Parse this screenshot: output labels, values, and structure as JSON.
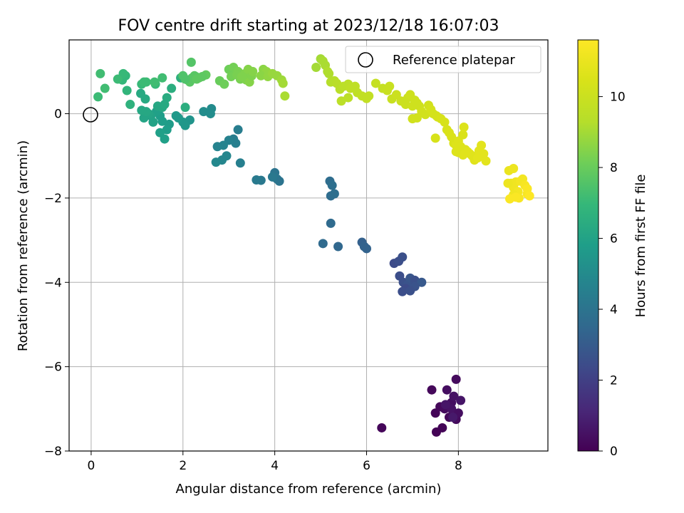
{
  "chart_data": {
    "type": "scatter",
    "title": "FOV centre drift starting at 2023/12/18 16:07:03",
    "xlabel": "Angular distance from reference (arcmin)",
    "ylabel": "Rotation from reference (arcmin)",
    "xlim": [
      -0.48,
      9.95
    ],
    "ylim": [
      -8.0,
      1.75
    ],
    "xticks": [
      0,
      2,
      4,
      6,
      8
    ],
    "xtick_labels": [
      "0",
      "2",
      "4",
      "6",
      "8"
    ],
    "yticks": [
      0,
      -2,
      -4,
      -6,
      -8
    ],
    "ytick_labels": [
      "0",
      "−2",
      "−4",
      "−6",
      "−8"
    ],
    "grid": true,
    "legend": {
      "placement": "top-right",
      "entries": [
        "Reference platepar"
      ]
    },
    "reference_point": {
      "x": 0,
      "y": 0,
      "label": "Reference platepar"
    },
    "colorbar": {
      "label": "Hours from first FF file",
      "range": [
        0,
        11.6
      ],
      "ticks": [
        0,
        2,
        4,
        6,
        8,
        10
      ],
      "tick_labels": [
        "0",
        "2",
        "4",
        "6",
        "8",
        "10"
      ],
      "colormap": "viridis"
    },
    "points": [
      [
        7.42,
        -6.55,
        0.2
      ],
      [
        7.95,
        -6.3,
        0.3
      ],
      [
        7.75,
        -6.55,
        0.4
      ],
      [
        7.5,
        -7.1,
        0.1
      ],
      [
        7.6,
        -6.95,
        0.2
      ],
      [
        7.7,
        -7.0,
        0.3
      ],
      [
        7.85,
        -6.85,
        0.4
      ],
      [
        7.9,
        -6.7,
        0.5
      ],
      [
        8.05,
        -6.8,
        0.6
      ],
      [
        7.8,
        -7.2,
        0.2
      ],
      [
        7.95,
        -7.25,
        0.3
      ],
      [
        7.85,
        -7.0,
        0.5
      ],
      [
        7.65,
        -7.45,
        0.1
      ],
      [
        7.52,
        -7.55,
        0.05
      ],
      [
        6.33,
        -7.45,
        0.15
      ],
      [
        8.0,
        -7.1,
        0.4
      ],
      [
        7.72,
        -6.9,
        0.6
      ],
      [
        7.88,
        -7.2,
        0.7
      ],
      [
        6.6,
        -3.55,
        2.4
      ],
      [
        6.7,
        -3.5,
        2.5
      ],
      [
        6.78,
        -3.4,
        2.6
      ],
      [
        6.72,
        -3.85,
        2.5
      ],
      [
        6.8,
        -4.0,
        2.6
      ],
      [
        6.9,
        -4.05,
        2.7
      ],
      [
        6.95,
        -3.9,
        2.8
      ],
      [
        7.05,
        -3.95,
        2.6
      ],
      [
        7.2,
        -4.0,
        2.9
      ],
      [
        6.85,
        -4.15,
        2.4
      ],
      [
        6.78,
        -4.22,
        2.5
      ],
      [
        7.05,
        -4.1,
        2.7
      ],
      [
        6.95,
        -4.2,
        2.6
      ],
      [
        5.9,
        -3.05,
        3.2
      ],
      [
        5.95,
        -3.15,
        3.3
      ],
      [
        6.0,
        -3.2,
        3.3
      ],
      [
        5.38,
        -3.15,
        3.5
      ],
      [
        5.05,
        -3.08,
        3.6
      ],
      [
        5.22,
        -2.6,
        3.6
      ],
      [
        5.2,
        -1.6,
        3.7
      ],
      [
        5.25,
        -1.7,
        3.8
      ],
      [
        5.22,
        -1.95,
        3.7
      ],
      [
        5.3,
        -1.9,
        3.8
      ],
      [
        4.0,
        -1.4,
        4.0
      ],
      [
        4.05,
        -1.55,
        4.1
      ],
      [
        4.1,
        -1.6,
        4.0
      ],
      [
        3.95,
        -1.5,
        4.2
      ],
      [
        3.7,
        -1.58,
        4.2
      ],
      [
        3.6,
        -1.57,
        4.3
      ],
      [
        3.1,
        -0.6,
        4.4
      ],
      [
        3.15,
        -0.7,
        4.5
      ],
      [
        3.2,
        -0.38,
        4.4
      ],
      [
        3.0,
        -0.63,
        4.6
      ],
      [
        3.25,
        -1.17,
        4.5
      ],
      [
        2.75,
        -0.78,
        4.7
      ],
      [
        2.88,
        -0.75,
        4.7
      ],
      [
        2.95,
        -1.0,
        4.8
      ],
      [
        2.85,
        -1.1,
        4.8
      ],
      [
        2.72,
        -1.15,
        4.9
      ],
      [
        2.62,
        0.12,
        5.0
      ],
      [
        2.45,
        0.05,
        5.1
      ],
      [
        2.6,
        0.0,
        5.1
      ],
      [
        2.15,
        -0.15,
        5.4
      ],
      [
        2.05,
        -0.28,
        5.5
      ],
      [
        2.0,
        -0.2,
        5.5
      ],
      [
        1.85,
        -0.05,
        5.6
      ],
      [
        1.9,
        -0.1,
        5.6
      ],
      [
        1.7,
        -0.25,
        5.7
      ],
      [
        1.65,
        -0.38,
        5.8
      ],
      [
        1.55,
        -0.18,
        5.8
      ],
      [
        1.5,
        -0.05,
        5.8
      ],
      [
        1.6,
        -0.6,
        5.9
      ],
      [
        1.5,
        -0.45,
        5.9
      ],
      [
        1.42,
        0.05,
        5.9
      ],
      [
        1.35,
        -0.2,
        6.0
      ],
      [
        1.3,
        -0.05,
        6.0
      ],
      [
        1.25,
        0.0,
        6.1
      ],
      [
        1.15,
        -0.1,
        6.1
      ],
      [
        1.2,
        0.05,
        6.2
      ],
      [
        1.1,
        0.08,
        6.2
      ],
      [
        1.08,
        0.48,
        6.3
      ],
      [
        1.18,
        0.35,
        6.3
      ],
      [
        1.55,
        0.15,
        6.2
      ],
      [
        1.45,
        0.18,
        6.2
      ],
      [
        1.65,
        0.38,
        6.4
      ],
      [
        1.75,
        0.6,
        6.5
      ],
      [
        1.95,
        0.85,
        6.6
      ],
      [
        2.05,
        0.15,
        6.5
      ],
      [
        1.6,
        0.22,
        6.3
      ],
      [
        0.85,
        0.22,
        6.7
      ],
      [
        0.78,
        0.55,
        6.8
      ],
      [
        0.75,
        0.9,
        6.9
      ],
      [
        0.68,
        0.8,
        6.9
      ],
      [
        0.7,
        0.95,
        7.0
      ],
      [
        0.58,
        0.82,
        7.1
      ],
      [
        0.2,
        0.95,
        7.2
      ],
      [
        0.3,
        0.6,
        7.2
      ],
      [
        0.15,
        0.4,
        7.1
      ],
      [
        1.1,
        0.7,
        7.0
      ],
      [
        1.2,
        0.75,
        7.1
      ],
      [
        1.4,
        0.7,
        7.0
      ],
      [
        1.55,
        0.85,
        7.2
      ],
      [
        1.15,
        0.75,
        7.1
      ],
      [
        1.38,
        0.75,
        7.2
      ],
      [
        2.0,
        0.9,
        7.5
      ],
      [
        2.1,
        0.8,
        7.6
      ],
      [
        2.2,
        0.85,
        7.6
      ],
      [
        2.25,
        0.9,
        7.7
      ],
      [
        2.35,
        0.85,
        7.8
      ],
      [
        2.18,
        1.22,
        7.6
      ],
      [
        2.28,
        0.88,
        7.7
      ],
      [
        2.5,
        0.92,
        7.9
      ],
      [
        2.15,
        0.75,
        7.7
      ],
      [
        2.3,
        0.82,
        7.8
      ],
      [
        2.05,
        0.82,
        7.5
      ],
      [
        2.42,
        0.88,
        7.8
      ],
      [
        2.8,
        0.78,
        8.0
      ],
      [
        2.9,
        0.7,
        8.1
      ],
      [
        3.0,
        1.05,
        8.1
      ],
      [
        3.1,
        1.1,
        8.2
      ],
      [
        3.15,
        0.95,
        8.2
      ],
      [
        3.2,
        1.0,
        8.3
      ],
      [
        3.25,
        0.82,
        8.3
      ],
      [
        3.3,
        0.9,
        8.2
      ],
      [
        3.35,
        0.95,
        8.4
      ],
      [
        3.38,
        0.8,
        8.4
      ],
      [
        3.42,
        1.05,
        8.5
      ],
      [
        3.45,
        0.75,
        8.5
      ],
      [
        3.5,
        0.9,
        8.4
      ],
      [
        3.52,
        1.0,
        8.5
      ],
      [
        3.05,
        0.88,
        8.2
      ],
      [
        3.18,
        0.92,
        8.3
      ],
      [
        3.28,
        0.88,
        8.4
      ],
      [
        3.75,
        1.05,
        8.6
      ],
      [
        3.82,
        1.0,
        8.7
      ],
      [
        3.7,
        0.9,
        8.6
      ],
      [
        3.85,
        0.88,
        8.7
      ],
      [
        3.95,
        0.95,
        8.8
      ],
      [
        4.05,
        0.9,
        8.8
      ],
      [
        4.15,
        0.8,
        8.9
      ],
      [
        4.18,
        0.72,
        9.0
      ],
      [
        4.22,
        0.42,
        9.1
      ],
      [
        5.0,
        1.3,
        9.0
      ],
      [
        5.05,
        1.25,
        9.1
      ],
      [
        5.1,
        1.15,
        9.1
      ],
      [
        5.15,
        1.0,
        9.2
      ],
      [
        5.18,
        0.95,
        9.2
      ],
      [
        4.9,
        1.1,
        9.0
      ],
      [
        5.22,
        0.75,
        9.3
      ],
      [
        5.3,
        0.78,
        9.3
      ],
      [
        5.35,
        0.72,
        9.4
      ],
      [
        5.42,
        0.58,
        9.4
      ],
      [
        5.5,
        0.65,
        9.5
      ],
      [
        5.6,
        0.7,
        9.5
      ],
      [
        5.65,
        0.6,
        9.6
      ],
      [
        5.75,
        0.65,
        9.6
      ],
      [
        5.8,
        0.5,
        9.6
      ],
      [
        5.6,
        0.38,
        9.5
      ],
      [
        5.45,
        0.3,
        9.5
      ],
      [
        5.9,
        0.42,
        9.7
      ],
      [
        6.0,
        0.36,
        9.7
      ],
      [
        6.05,
        0.42,
        9.7
      ],
      [
        6.2,
        0.72,
        9.8
      ],
      [
        6.35,
        0.6,
        9.8
      ],
      [
        6.45,
        0.55,
        9.9
      ],
      [
        6.5,
        0.65,
        9.9
      ],
      [
        6.55,
        0.35,
        9.9
      ],
      [
        6.65,
        0.45,
        10.0
      ],
      [
        6.75,
        0.3,
        10.0
      ],
      [
        6.85,
        0.22,
        10.0
      ],
      [
        6.9,
        0.38,
        10.0
      ],
      [
        6.95,
        0.45,
        10.1
      ],
      [
        7.0,
        0.18,
        10.1
      ],
      [
        7.05,
        0.32,
        10.1
      ],
      [
        7.1,
        0.25,
        10.1
      ],
      [
        7.15,
        0.18,
        10.1
      ],
      [
        7.2,
        0.05,
        10.2
      ],
      [
        7.28,
        -0.02,
        10.2
      ],
      [
        7.0,
        -0.12,
        10.2
      ],
      [
        7.1,
        -0.1,
        10.2
      ],
      [
        7.35,
        0.2,
        10.2
      ],
      [
        7.4,
        0.1,
        10.3
      ],
      [
        7.45,
        0.0,
        10.3
      ],
      [
        7.52,
        -0.05,
        10.3
      ],
      [
        7.55,
        -0.08,
        10.3
      ],
      [
        7.62,
        -0.12,
        10.4
      ],
      [
        7.7,
        -0.2,
        10.4
      ],
      [
        7.5,
        -0.58,
        10.4
      ],
      [
        7.75,
        -0.38,
        10.4
      ],
      [
        7.8,
        -0.45,
        10.5
      ],
      [
        7.85,
        -0.55,
        10.5
      ],
      [
        7.9,
        -0.7,
        10.5
      ],
      [
        7.95,
        -0.75,
        10.6
      ],
      [
        8.0,
        -0.65,
        10.6
      ],
      [
        8.05,
        -0.78,
        10.6
      ],
      [
        8.1,
        -0.5,
        10.5
      ],
      [
        8.12,
        -0.32,
        10.6
      ],
      [
        8.15,
        -0.85,
        10.6
      ],
      [
        8.2,
        -0.9,
        10.7
      ],
      [
        8.25,
        -0.95,
        10.7
      ],
      [
        8.3,
        -1.0,
        10.7
      ],
      [
        8.35,
        -1.1,
        10.7
      ],
      [
        8.45,
        -0.88,
        10.8
      ],
      [
        8.5,
        -0.75,
        10.8
      ],
      [
        8.55,
        -0.95,
        10.8
      ],
      [
        8.6,
        -1.12,
        10.8
      ],
      [
        8.0,
        -0.92,
        10.6
      ],
      [
        8.1,
        -0.98,
        10.7
      ],
      [
        7.95,
        -0.9,
        10.6
      ],
      [
        8.42,
        -1.05,
        10.8
      ],
      [
        9.1,
        -1.35,
        11.0
      ],
      [
        9.2,
        -1.3,
        11.1
      ],
      [
        9.15,
        -1.65,
        11.1
      ],
      [
        9.2,
        -1.75,
        11.2
      ],
      [
        9.25,
        -1.62,
        11.2
      ],
      [
        9.3,
        -1.85,
        11.3
      ],
      [
        9.35,
        -1.6,
        11.3
      ],
      [
        9.4,
        -1.55,
        11.3
      ],
      [
        9.45,
        -1.7,
        11.4
      ],
      [
        9.5,
        -1.9,
        11.4
      ],
      [
        9.5,
        -1.78,
        11.5
      ],
      [
        9.08,
        -1.65,
        11.1
      ],
      [
        9.2,
        -1.92,
        11.2
      ],
      [
        9.32,
        -2.0,
        11.4
      ],
      [
        9.12,
        -2.02,
        11.5
      ],
      [
        9.25,
        -1.98,
        11.5
      ],
      [
        9.55,
        -1.95,
        11.6
      ]
    ]
  }
}
